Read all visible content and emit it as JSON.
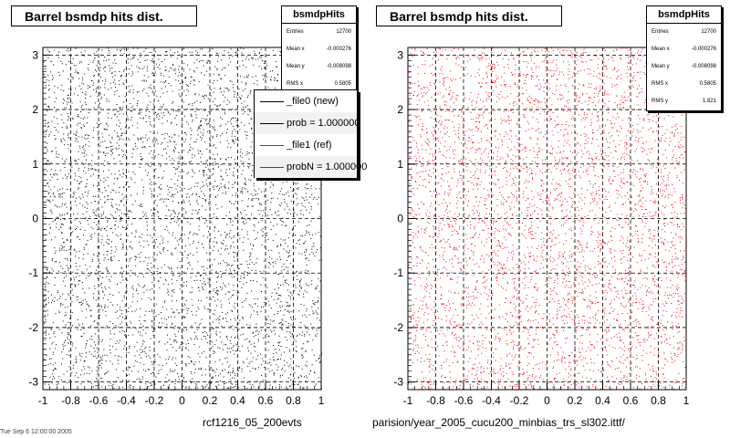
{
  "panels": [
    {
      "title": "Barrel bsmdp hits dist.",
      "stats": {
        "name": "bsmdpHits",
        "rows": [
          {
            "label": "Entries",
            "value": "12700"
          },
          {
            "label": "Mean x",
            "value": "-0.000276"
          },
          {
            "label": "Mean y",
            "value": "-0.008098"
          },
          {
            "label": "RMS x",
            "value": "0.5805"
          }
        ]
      },
      "bottom_label": "rcf1216_05_200evts",
      "marker_color": "#000000"
    },
    {
      "title": "Barrel bsmdp hits dist.",
      "stats": {
        "name": "bsmdpHits",
        "rows": [
          {
            "label": "Entries",
            "value": "12700"
          },
          {
            "label": "Mean x",
            "value": "-0.000276"
          },
          {
            "label": "Mean y",
            "value": "-0.008098"
          },
          {
            "label": "RMS x",
            "value": "0.5805"
          },
          {
            "label": "RMS y",
            "value": "1.821"
          }
        ]
      },
      "bottom_label": "parision/year_2005_cucu200_minbias_trs_sl302.ittf/",
      "marker_color": "#ff0000"
    }
  ],
  "legend": {
    "entries": [
      {
        "label": "_file0 (new)",
        "color": "#000000"
      },
      {
        "label": "prob = 1.000000",
        "color": "#000000"
      },
      {
        "label": "_file1 (ref)",
        "color": "#ff0000"
      },
      {
        "label": "probN = 1.000000",
        "color": "#ff0000"
      }
    ]
  },
  "footer_text": "Tue Sep 6 12:00:00 2005",
  "chart_data": [
    {
      "type": "scatter",
      "title": "Barrel bsmdp hits dist.",
      "xlim": [
        -1,
        1
      ],
      "ylim": [
        -3.14,
        3.14
      ],
      "x_ticks": [
        -1,
        -0.8,
        -0.6,
        -0.4,
        -0.2,
        0,
        0.2,
        0.4,
        0.6,
        0.8,
        1
      ],
      "x_tick_labels": [
        "-1",
        "-0.8",
        "-0.6",
        "-0.4",
        "-0.2",
        "0",
        "0.2",
        "0.4",
        "0.6",
        "0.8",
        "1"
      ],
      "y_ticks": [
        -3,
        -2,
        -1,
        0,
        1,
        2,
        3
      ],
      "y_tick_labels": [
        "-3",
        "-2",
        "-1",
        "0",
        "1",
        "2",
        "3"
      ],
      "grid": true,
      "n_points_drawn": 4500,
      "series": [
        {
          "name": "_file0 (new)",
          "color": "#000000",
          "distribution": "uniform"
        }
      ]
    },
    {
      "type": "scatter",
      "title": "Barrel bsmdp hits dist.",
      "xlim": [
        -1,
        1
      ],
      "ylim": [
        -3.14,
        3.14
      ],
      "x_ticks": [
        -1,
        -0.8,
        -0.6,
        -0.4,
        -0.2,
        0,
        0.2,
        0.4,
        0.6,
        0.8,
        1
      ],
      "x_tick_labels": [
        "-1",
        "-0.8",
        "-0.6",
        "-0.4",
        "-0.2",
        "0",
        "0.2",
        "0.4",
        "0.6",
        "0.8",
        "1"
      ],
      "y_ticks": [
        -3,
        -2,
        -1,
        0,
        1,
        2,
        3
      ],
      "y_tick_labels": [
        "-3",
        "-2",
        "-1",
        "0",
        "1",
        "2",
        "3"
      ],
      "grid": true,
      "n_points_drawn": 4500,
      "series": [
        {
          "name": "_file1 (ref)",
          "color": "#ff0000",
          "distribution": "uniform"
        }
      ]
    }
  ]
}
